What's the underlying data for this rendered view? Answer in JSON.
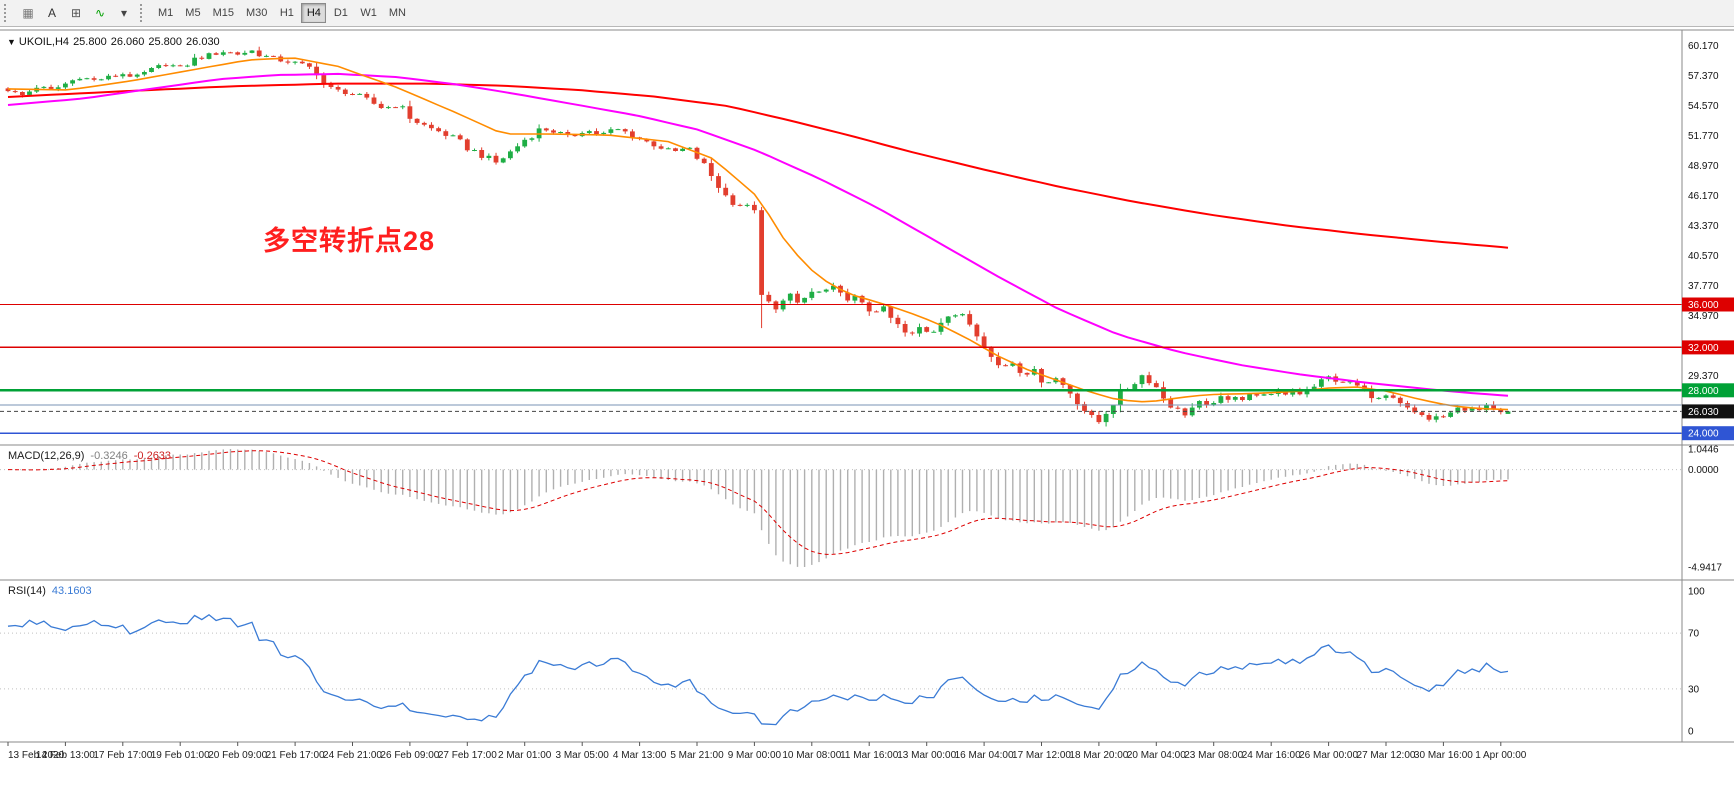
{
  "toolbar": {
    "icons": [
      {
        "name": "chart-grid-icon",
        "glyph": "▦",
        "color": "#777777"
      },
      {
        "name": "text-tool-icon",
        "glyph": "A",
        "color": "#333333"
      },
      {
        "name": "crosshair-tool-icon",
        "glyph": "⊞",
        "color": "#555555"
      },
      {
        "name": "indicator-tool-icon",
        "glyph": "∿",
        "color": "#00a000"
      },
      {
        "name": "dropdown-caret-icon",
        "glyph": "▾",
        "color": "#444444"
      }
    ],
    "timeframes": [
      {
        "label": "M1",
        "active": false
      },
      {
        "label": "M5",
        "active": false
      },
      {
        "label": "M15",
        "active": false
      },
      {
        "label": "M30",
        "active": false
      },
      {
        "label": "H1",
        "active": false
      },
      {
        "label": "H4",
        "active": true
      },
      {
        "label": "D1",
        "active": false
      },
      {
        "label": "W1",
        "active": false
      },
      {
        "label": "MN",
        "active": false
      }
    ]
  },
  "chart": {
    "dropdown_glyph": "▼",
    "symbol_ohlc": {
      "symbol": "UKOIL,H4",
      "open": "25.800",
      "high": "26.060",
      "low": "25.800",
      "close": "26.030"
    },
    "annotation": {
      "text": "多空转折点28",
      "color": "#ff1f1f"
    },
    "price_scale_labels": [
      {
        "p": 60.17,
        "t": "60.170"
      },
      {
        "p": 57.37,
        "t": "57.370"
      },
      {
        "p": 54.57,
        "t": "54.570"
      },
      {
        "p": 51.77,
        "t": "51.770"
      },
      {
        "p": 48.97,
        "t": "48.970"
      },
      {
        "p": 46.17,
        "t": "46.170"
      },
      {
        "p": 43.37,
        "t": "43.370"
      },
      {
        "p": 40.57,
        "t": "40.570"
      },
      {
        "p": 37.77,
        "t": "37.770"
      },
      {
        "p": 34.97,
        "t": "34.970"
      },
      {
        "p": 29.37,
        "t": "29.370"
      }
    ],
    "time_labels": [
      "13 Feb 2020",
      "14 Feb 13:00",
      "17 Feb 17:00",
      "19 Feb 01:00",
      "20 Feb 09:00",
      "21 Feb 17:00",
      "24 Feb 21:00",
      "26 Feb 09:00",
      "27 Feb 17:00",
      "2 Mar 01:00",
      "3 Mar 05:00",
      "4 Mar 13:00",
      "5 Mar 21:00",
      "9 Mar 00:00",
      "10 Mar 08:00",
      "11 Mar 16:00",
      "13 Mar 00:00",
      "16 Mar 04:00",
      "17 Mar 12:00",
      "18 Mar 20:00",
      "20 Mar 04:00",
      "23 Mar 08:00",
      "24 Mar 16:00",
      "26 Mar 00:00",
      "27 Mar 12:00",
      "30 Mar 16:00",
      "1 Apr 00:00"
    ]
  },
  "indicators": {
    "macd": {
      "name": "MACD(12,26,9)",
      "value_main": "-0.3246",
      "value_signal": "-0.2633",
      "scale_max": 1.0446,
      "scale_min": -4.9417,
      "scale_labels": [
        {
          "v": 1.0446,
          "t": "1.0446"
        },
        {
          "v": 0,
          "t": "0.0000"
        },
        {
          "v": -4.9417,
          "t": "-4.9417"
        }
      ]
    },
    "rsi": {
      "name": "RSI(14)",
      "value": "43.1603",
      "levels": [
        70,
        30
      ],
      "scale_labels": [
        {
          "v": 100,
          "t": "100"
        },
        {
          "v": 70,
          "t": "70"
        },
        {
          "v": 30,
          "t": "30"
        },
        {
          "v": 0,
          "t": "0"
        }
      ]
    }
  },
  "colors": {
    "up": "#1fae45",
    "down": "#e23e2e",
    "macd_hist": "#b0b0b0",
    "macd_signal": "#dd0000",
    "rsi_line": "#3a7bd5",
    "separator": "#8a8a8a",
    "axis_text": "#222222",
    "scale_text": "#111111",
    "level_dotted": "#c0c0c0",
    "current_line": "#444444",
    "current_badge": "#111111"
  },
  "chart_data": {
    "type": "candlestick",
    "symbol": "UKOIL",
    "timeframe": "H4",
    "num_bars": 210,
    "price_range": {
      "max": 61.5,
      "min": 22.9
    },
    "last_bar": {
      "open": 25.8,
      "high": 26.06,
      "low": 25.8,
      "close": 26.03
    },
    "current_price": {
      "value": 26.03,
      "label": "26.030"
    },
    "levels": [
      {
        "price": 36.0,
        "label": "36.000",
        "color": "#dd0000",
        "width": 1.4
      },
      {
        "price": 32.0,
        "label": "32.000",
        "color": "#dd0000",
        "width": 1.4
      },
      {
        "price": 28.0,
        "label": "28.000",
        "color": "#00a136",
        "width": 2.2
      },
      {
        "price": 26.62,
        "label": null,
        "color": "#7a93b5",
        "width": 1
      },
      {
        "price": 24.0,
        "label": "24.000",
        "color": "#2f55d4",
        "width": 1.6
      }
    ],
    "close_anchors": [
      [
        0,
        55.9
      ],
      [
        0.01,
        55.5
      ],
      [
        0.019,
        56.3
      ],
      [
        0.03,
        56.0
      ],
      [
        0.0385,
        56.6
      ],
      [
        0.048,
        57.2
      ],
      [
        0.058,
        56.9
      ],
      [
        0.0769,
        57.5
      ],
      [
        0.085,
        57.2
      ],
      [
        0.095,
        57.8
      ],
      [
        0.105,
        58.4
      ],
      [
        0.1154,
        58.1
      ],
      [
        0.125,
        58.9
      ],
      [
        0.135,
        59.3
      ],
      [
        0.145,
        59.6
      ],
      [
        0.1538,
        59.3
      ],
      [
        0.162,
        59.7
      ],
      [
        0.17,
        59.2
      ],
      [
        0.18,
        58.8
      ],
      [
        0.1923,
        58.5
      ],
      [
        0.205,
        57.9
      ],
      [
        0.212,
        56.2
      ],
      [
        0.2308,
        55.6
      ],
      [
        0.24,
        55.0
      ],
      [
        0.25,
        54.3
      ],
      [
        0.26,
        54.6
      ],
      [
        0.2692,
        53.3
      ],
      [
        0.28,
        52.5
      ],
      [
        0.29,
        52.0
      ],
      [
        0.3,
        51.2
      ],
      [
        0.3077,
        50.5
      ],
      [
        0.315,
        50.0
      ],
      [
        0.325,
        49.2
      ],
      [
        0.335,
        50.2
      ],
      [
        0.3462,
        51.6
      ],
      [
        0.355,
        52.4
      ],
      [
        0.365,
        52.1
      ],
      [
        0.375,
        51.6
      ],
      [
        0.3846,
        52.3
      ],
      [
        0.395,
        51.8
      ],
      [
        0.405,
        52.4
      ],
      [
        0.415,
        51.9
      ],
      [
        0.4231,
        51.3
      ],
      [
        0.433,
        50.8
      ],
      [
        0.443,
        50.2
      ],
      [
        0.453,
        50.6
      ],
      [
        0.4615,
        49.4
      ],
      [
        0.47,
        47.8
      ],
      [
        0.48,
        45.8
      ],
      [
        0.49,
        45.2
      ],
      [
        0.4995,
        45.0
      ],
      [
        0.503,
        34.8
      ],
      [
        0.507,
        36.2
      ],
      [
        0.512,
        35.4
      ],
      [
        0.516,
        36.6
      ],
      [
        0.52,
        37.2
      ],
      [
        0.524,
        36.4
      ],
      [
        0.528,
        35.7
      ],
      [
        0.532,
        36.8
      ],
      [
        0.5385,
        37.4
      ],
      [
        0.543,
        36.9
      ],
      [
        0.548,
        37.8
      ],
      [
        0.553,
        37.1
      ],
      [
        0.558,
        36.3
      ],
      [
        0.563,
        36.9
      ],
      [
        0.568,
        36.0
      ],
      [
        0.5769,
        35.2
      ],
      [
        0.582,
        35.8
      ],
      [
        0.587,
        34.9
      ],
      [
        0.592,
        34.2
      ],
      [
        0.597,
        33.4
      ],
      [
        0.602,
        33.0
      ],
      [
        0.607,
        33.9
      ],
      [
        0.6154,
        33.3
      ],
      [
        0.62,
        34.3
      ],
      [
        0.625,
        35.1
      ],
      [
        0.63,
        34.6
      ],
      [
        0.635,
        35.4
      ],
      [
        0.64,
        34.5
      ],
      [
        0.645,
        33.6
      ],
      [
        0.65,
        32.6
      ],
      [
        0.6538,
        31.4
      ],
      [
        0.658,
        30.6
      ],
      [
        0.663,
        30.0
      ],
      [
        0.668,
        30.8
      ],
      [
        0.673,
        30.2
      ],
      [
        0.678,
        29.5
      ],
      [
        0.683,
        29.9
      ],
      [
        0.688,
        29.2
      ],
      [
        0.6923,
        28.6
      ],
      [
        0.697,
        29.3
      ],
      [
        0.702,
        28.7
      ],
      [
        0.707,
        28.0
      ],
      [
        0.712,
        27.2
      ],
      [
        0.717,
        26.3
      ],
      [
        0.722,
        25.4
      ],
      [
        0.727,
        25.0
      ],
      [
        0.7308,
        25.8
      ],
      [
        0.736,
        26.7
      ],
      [
        0.741,
        27.6
      ],
      [
        0.746,
        28.2
      ],
      [
        0.751,
        28.8
      ],
      [
        0.756,
        29.4
      ],
      [
        0.761,
        29.0
      ],
      [
        0.766,
        28.2
      ],
      [
        0.7692,
        27.5
      ],
      [
        0.774,
        26.8
      ],
      [
        0.779,
        26.2
      ],
      [
        0.784,
        25.7
      ],
      [
        0.789,
        26.3
      ],
      [
        0.794,
        26.9
      ],
      [
        0.799,
        26.5
      ],
      [
        0.804,
        27.1
      ],
      [
        0.8077,
        27.4
      ],
      [
        0.813,
        27.0
      ],
      [
        0.818,
        27.5
      ],
      [
        0.823,
        27.2
      ],
      [
        0.828,
        27.7
      ],
      [
        0.833,
        27.4
      ],
      [
        0.838,
        27.8
      ],
      [
        0.843,
        27.5
      ],
      [
        0.8462,
        27.9
      ],
      [
        0.851,
        27.6
      ],
      [
        0.856,
        28.0
      ],
      [
        0.861,
        27.7
      ],
      [
        0.866,
        28.2
      ],
      [
        0.871,
        28.5
      ],
      [
        0.876,
        28.9
      ],
      [
        0.881,
        29.3
      ],
      [
        0.8846,
        29.0
      ],
      [
        0.889,
        28.6
      ],
      [
        0.894,
        28.9
      ],
      [
        0.899,
        28.4
      ],
      [
        0.904,
        28.0
      ],
      [
        0.909,
        27.6
      ],
      [
        0.914,
        27.2
      ],
      [
        0.919,
        27.5
      ],
      [
        0.9231,
        27.0
      ],
      [
        0.928,
        26.6
      ],
      [
        0.933,
        26.2
      ],
      [
        0.938,
        25.8
      ],
      [
        0.943,
        25.5
      ],
      [
        0.948,
        25.2
      ],
      [
        0.953,
        25.7
      ],
      [
        0.958,
        25.4
      ],
      [
        0.9615,
        25.9
      ],
      [
        0.966,
        26.3
      ],
      [
        0.971,
        26.0
      ],
      [
        0.976,
        26.5
      ],
      [
        0.981,
        26.2
      ],
      [
        0.986,
        26.6
      ],
      [
        0.991,
        26.1
      ],
      [
        0.996,
        25.8
      ],
      [
        1,
        26.03
      ]
    ],
    "moving_averages": [
      {
        "name": "ma-slow-line",
        "color": "#ff0000",
        "width": 2,
        "anchors": [
          [
            0,
            55.35
          ],
          [
            0.08,
            55.9
          ],
          [
            0.15,
            56.35
          ],
          [
            0.22,
            56.6
          ],
          [
            0.28,
            56.6
          ],
          [
            0.33,
            56.4
          ],
          [
            0.38,
            56.0
          ],
          [
            0.43,
            55.4
          ],
          [
            0.48,
            54.5
          ],
          [
            0.52,
            53.2
          ],
          [
            0.56,
            51.8
          ],
          [
            0.6,
            50.3
          ],
          [
            0.65,
            48.6
          ],
          [
            0.7,
            47.0
          ],
          [
            0.75,
            45.6
          ],
          [
            0.8,
            44.4
          ],
          [
            0.85,
            43.4
          ],
          [
            0.9,
            42.6
          ],
          [
            0.95,
            41.9
          ],
          [
            1,
            41.3
          ]
        ]
      },
      {
        "name": "ma-mid-line",
        "color": "#ff00ff",
        "width": 2,
        "anchors": [
          [
            0,
            54.6
          ],
          [
            0.05,
            55.2
          ],
          [
            0.1,
            56.2
          ],
          [
            0.14,
            57.0
          ],
          [
            0.18,
            57.4
          ],
          [
            0.22,
            57.5
          ],
          [
            0.26,
            57.2
          ],
          [
            0.3,
            56.5
          ],
          [
            0.34,
            55.6
          ],
          [
            0.38,
            54.6
          ],
          [
            0.42,
            53.6
          ],
          [
            0.46,
            52.3
          ],
          [
            0.5,
            50.3
          ],
          [
            0.54,
            47.8
          ],
          [
            0.58,
            45.0
          ],
          [
            0.62,
            41.8
          ],
          [
            0.66,
            38.6
          ],
          [
            0.7,
            35.6
          ],
          [
            0.74,
            33.2
          ],
          [
            0.78,
            31.6
          ],
          [
            0.82,
            30.4
          ],
          [
            0.86,
            29.5
          ],
          [
            0.9,
            28.8
          ],
          [
            0.94,
            28.2
          ],
          [
            0.97,
            27.8
          ],
          [
            1,
            27.5
          ]
        ]
      },
      {
        "name": "ma-fast-line",
        "color": "#ff8c00",
        "width": 1.6,
        "anchors": [
          [
            0,
            56.1
          ],
          [
            0.04,
            56.0
          ],
          [
            0.08,
            56.8
          ],
          [
            0.12,
            57.8
          ],
          [
            0.16,
            58.8
          ],
          [
            0.19,
            59.0
          ],
          [
            0.22,
            58.2
          ],
          [
            0.26,
            56.2
          ],
          [
            0.3,
            53.8
          ],
          [
            0.33,
            51.9
          ],
          [
            0.36,
            51.9
          ],
          [
            0.4,
            51.8
          ],
          [
            0.44,
            51.2
          ],
          [
            0.47,
            49.6
          ],
          [
            0.5,
            46.0
          ],
          [
            0.52,
            41.5
          ],
          [
            0.54,
            38.6
          ],
          [
            0.56,
            37.0
          ],
          [
            0.58,
            36.2
          ],
          [
            0.6,
            35.3
          ],
          [
            0.62,
            34.2
          ],
          [
            0.64,
            32.8
          ],
          [
            0.66,
            31.2
          ],
          [
            0.68,
            29.9
          ],
          [
            0.7,
            28.9
          ],
          [
            0.72,
            27.9
          ],
          [
            0.74,
            27.1
          ],
          [
            0.76,
            26.9
          ],
          [
            0.78,
            27.3
          ],
          [
            0.8,
            27.6
          ],
          [
            0.83,
            27.7
          ],
          [
            0.86,
            27.9
          ],
          [
            0.88,
            28.2
          ],
          [
            0.9,
            28.3
          ],
          [
            0.92,
            27.9
          ],
          [
            0.94,
            27.2
          ],
          [
            0.96,
            26.6
          ],
          [
            0.98,
            26.3
          ],
          [
            1,
            26.2
          ]
        ]
      }
    ]
  }
}
